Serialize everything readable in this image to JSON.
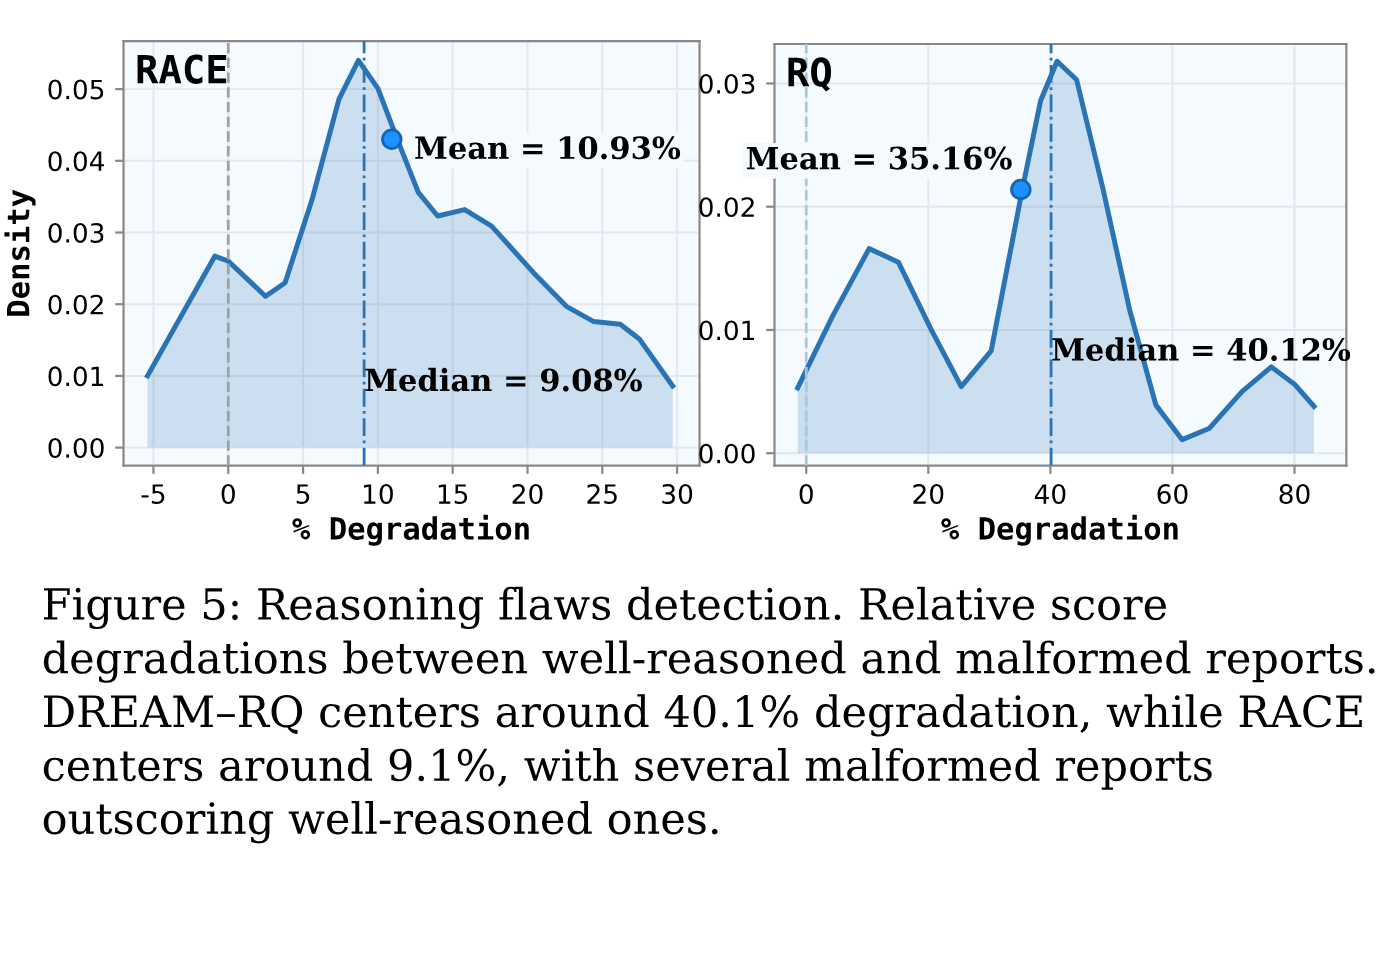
{
  "chart_data": [
    {
      "type": "area",
      "title": "RACE",
      "xlabel": "% Degradation",
      "ylabel": "Density",
      "x": [
        -5.4,
        -0.9,
        0.0,
        2.5,
        3.8,
        5.6,
        7.4,
        8.7,
        10.0,
        11.3,
        12.7,
        14.0,
        15.8,
        17.6,
        20.4,
        22.6,
        24.4,
        26.2,
        27.5,
        29.7
      ],
      "series": [
        {
          "color": "#2a74b5",
          "values": [
            0.01,
            0.0267,
            0.026,
            0.0211,
            0.023,
            0.0346,
            0.0486,
            0.054,
            0.0501,
            0.043,
            0.0356,
            0.0323,
            0.0332,
            0.0309,
            0.0244,
            0.0197,
            0.0176,
            0.0172,
            0.0151,
            0.0086
          ]
        },
        {
          "type": "scatter",
          "name": "Mean = 10.93%",
          "color": "#1e90ff",
          "x": [
            10.93
          ],
          "values": [
            0.043
          ]
        }
      ],
      "ref_lines": [
        {
          "axis": "x",
          "value": 0,
          "color": "#a0a0a0",
          "line_style": "dashed"
        },
        {
          "axis": "x",
          "value": 9.08,
          "label": "Median = 9.08%",
          "color": "#2a74b5",
          "line_style": "dashdot"
        }
      ],
      "xlim": [
        -7.0,
        31.5
      ],
      "xticks": [
        -5,
        0,
        5,
        10,
        15,
        20,
        25,
        30
      ],
      "ylim": [
        -0.0025,
        0.0567
      ],
      "yticks": [
        {
          "value": 0,
          "label": "0.00"
        },
        {
          "value": 0.01,
          "label": "0.01"
        },
        {
          "value": 0.02,
          "label": "0.02"
        },
        {
          "value": 0.03,
          "label": "0.03"
        },
        {
          "value": 0.04,
          "label": "0.04"
        },
        {
          "value": 0.05,
          "label": "0.05"
        }
      ],
      "grid": true
    },
    {
      "type": "area",
      "title": "RQ",
      "xlabel": "% Degradation",
      "x": [
        -1.4,
        4.3,
        10.3,
        15.1,
        20.5,
        25.4,
        30.3,
        35.4,
        38.4,
        41.1,
        44.3,
        48.6,
        53.0,
        57.3,
        61.6,
        66.0,
        71.4,
        76.2,
        80.0,
        83.2
      ],
      "series": [
        {
          "color": "#2a74b5",
          "values": [
            0.0053,
            0.0111,
            0.0166,
            0.0155,
            0.01,
            0.0054,
            0.0083,
            0.0214,
            0.0286,
            0.0318,
            0.0303,
            0.0215,
            0.0116,
            0.0039,
            0.0011,
            0.002,
            0.005,
            0.007,
            0.0056,
            0.0038
          ]
        },
        {
          "type": "scatter",
          "name": "Mean = 35.16%",
          "color": "#1e90ff",
          "x": [
            35.16
          ],
          "values": [
            0.0214
          ]
        }
      ],
      "ref_lines": [
        {
          "axis": "x",
          "value": 0,
          "color": "#a8c8e0",
          "line_style": "dashed"
        },
        {
          "axis": "x",
          "value": 40.12,
          "label": "Median = 40.12%",
          "color": "#2a74b5",
          "line_style": "dashdot"
        }
      ],
      "xlim": [
        -5.2,
        88.5
      ],
      "xticks": [
        0,
        20,
        40,
        60,
        80
      ],
      "ylim": [
        -0.001,
        0.0332
      ],
      "yticks": [
        {
          "value": 0,
          "label": "0.00"
        },
        {
          "value": 0.01,
          "label": "0.01"
        },
        {
          "value": 0.02,
          "label": "0.02"
        },
        {
          "value": 0.03,
          "label": "0.03"
        }
      ],
      "grid": true,
      "annotations": [
        "Figure 5: Reasoning flaws detection. Relative score degradations between well-reasoned and malformed reports. DREAM–RQ centers around 40.1% degradation, while RACE centers around 9.1%, with several malformed reports outscoring well-reasoned ones."
      ]
    }
  ]
}
